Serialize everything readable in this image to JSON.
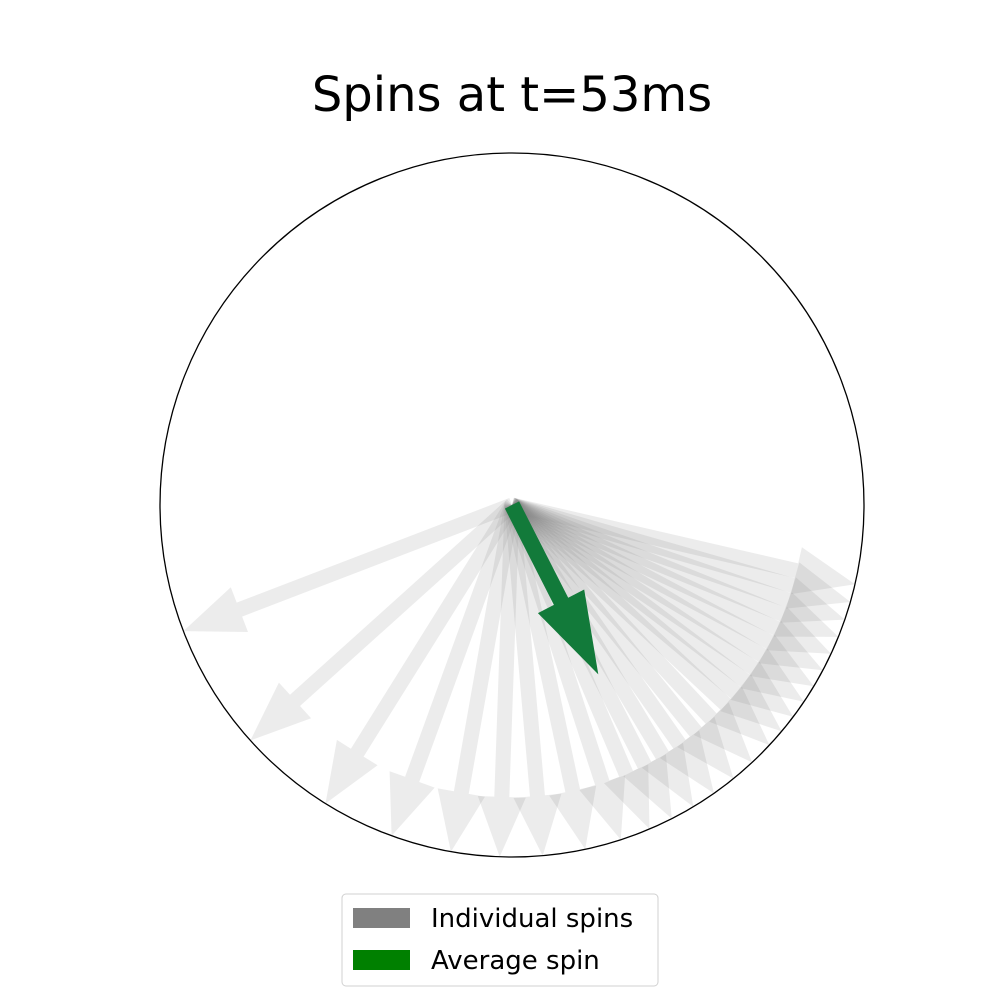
{
  "chart_data": {
    "type": "polar-arrows",
    "title": "Spins at t=53ms",
    "legend": {
      "placement": "bottom-center",
      "entries": [
        {
          "label": "Individual spins",
          "color": "#808080"
        },
        {
          "label": "Average spin",
          "color": "#008000"
        }
      ]
    },
    "individual_spins": {
      "color": "#808080",
      "magnitude": 1.0,
      "angles_deg": [
        -13,
        -16,
        -19,
        -22,
        -25,
        -28,
        -31,
        -34,
        -37,
        -40,
        -43,
        -47,
        -51,
        -55,
        -59,
        -63,
        -67,
        -72,
        -78,
        -85,
        -92,
        -100,
        -110,
        -122,
        -138,
        -159
      ]
    },
    "average_spin": {
      "color": "#127a3a",
      "angle_deg": -63,
      "magnitude": 0.54
    }
  }
}
